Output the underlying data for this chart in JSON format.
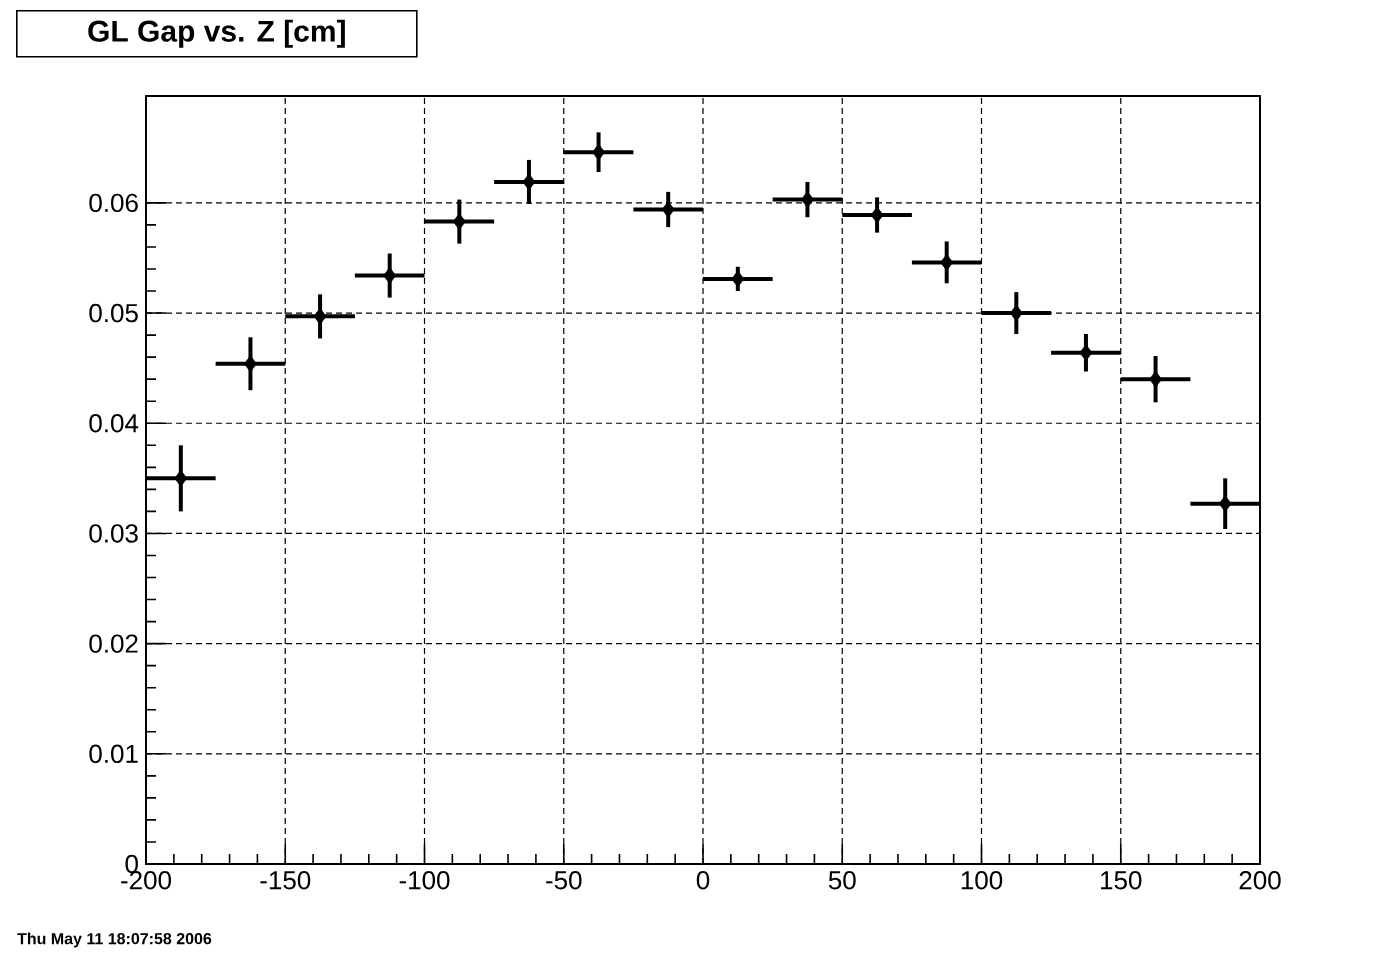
{
  "chart_data": {
    "type": "scatter",
    "title": "GL Gap vs. Z [cm]",
    "x": [
      -187.5,
      -162.5,
      -137.5,
      -112.5,
      -87.5,
      -62.5,
      -37.5,
      -12.5,
      12.5,
      37.5,
      62.5,
      87.5,
      112.5,
      137.5,
      162.5,
      187.5
    ],
    "values": [
      0.035,
      0.0454,
      0.0497,
      0.0534,
      0.0583,
      0.0619,
      0.0646,
      0.0594,
      0.0531,
      0.0603,
      0.0589,
      0.0546,
      0.05,
      0.0464,
      0.044,
      0.0327
    ],
    "errors": [
      0.003,
      0.0024,
      0.002,
      0.002,
      0.002,
      0.002,
      0.0018,
      0.0016,
      0.0011,
      0.0016,
      0.0016,
      0.0019,
      0.0019,
      0.0017,
      0.0021,
      0.0023
    ],
    "xerrors": [
      12.5,
      12.5,
      12.5,
      12.5,
      12.5,
      12.5,
      12.5,
      12.5,
      12.5,
      12.5,
      12.5,
      12.5,
      12.5,
      12.5,
      12.5,
      12.5
    ],
    "color": "#000000",
    "marker": "diamond",
    "grid": true,
    "xlim": [
      -200,
      200
    ],
    "ylim": [
      0,
      0.0697
    ],
    "xticks": [
      -200,
      -150,
      -100,
      -50,
      0,
      50,
      100,
      150,
      200
    ],
    "yticks": [
      0,
      0.01,
      0.02,
      0.03,
      0.04,
      0.05,
      0.06
    ],
    "annotations": [
      "Thu May 11 18:07:58 2006"
    ]
  }
}
